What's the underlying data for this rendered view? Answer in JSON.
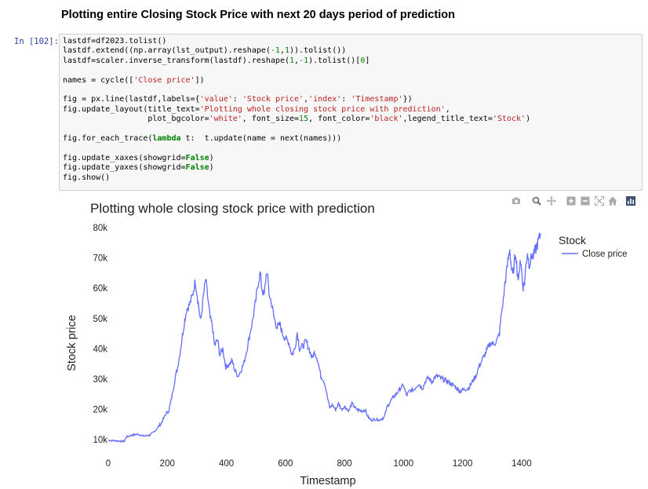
{
  "notebook": {
    "heading": "Plotting entire Closing Stock Price with next 20 days period of prediction",
    "prompt": "In [102]:",
    "code_lines": [
      "lastdf=df2023.tolist()",
      "lastdf.extend((np.array(lst_output).reshape(-1,1)).tolist())",
      "lastdf=scaler.inverse_transform(lastdf).reshape(1,-1).tolist()[0]",
      "",
      "names = cycle(['Close price'])",
      "",
      "fig = px.line(lastdf,labels={'value': 'Stock price','index': 'Timestamp'})",
      "fig.update_layout(title_text='Plotting whole closing stock price with prediction',",
      "                  plot_bgcolor='white', font_size=15, font_color='black',legend_title_text='Stock')",
      "",
      "fig.for_each_trace(lambda t:  t.update(name = next(names)))",
      "",
      "fig.update_xaxes(showgrid=False)",
      "fig.update_yaxes(showgrid=False)",
      "fig.show()"
    ]
  },
  "modebar": {
    "icons": [
      "camera-icon",
      "zoom-icon",
      "pan-icon",
      "zoom-in-icon",
      "zoom-out-icon",
      "autoscale-icon",
      "home-icon",
      "plotly-logo-icon"
    ]
  },
  "chart_data": {
    "type": "line",
    "title": "Plotting whole closing stock price with prediction",
    "xlabel": "Timestamp",
    "ylabel": "Stock price",
    "xlim": [
      0,
      1480
    ],
    "ylim": [
      9000,
      80000
    ],
    "x_ticks": [
      0,
      200,
      400,
      600,
      800,
      1000,
      1200,
      1400
    ],
    "y_ticks": [
      10000,
      20000,
      30000,
      40000,
      50000,
      60000,
      70000,
      80000
    ],
    "y_tick_labels": [
      "10k",
      "20k",
      "30k",
      "40k",
      "50k",
      "60k",
      "70k",
      "80k"
    ],
    "grid": false,
    "legend_title": "Stock",
    "legend_position": "top-right",
    "series": [
      {
        "name": "Close price",
        "color": "#636efa",
        "points": [
          [
            0,
            9800
          ],
          [
            30,
            9600
          ],
          [
            55,
            9400
          ],
          [
            60,
            10800
          ],
          [
            80,
            11500
          ],
          [
            100,
            11800
          ],
          [
            120,
            11200
          ],
          [
            140,
            11500
          ],
          [
            155,
            12500
          ],
          [
            165,
            13800
          ],
          [
            180,
            15500
          ],
          [
            195,
            18500
          ],
          [
            205,
            19500
          ],
          [
            215,
            24000
          ],
          [
            225,
            29500
          ],
          [
            235,
            34000
          ],
          [
            245,
            40000
          ],
          [
            255,
            47000
          ],
          [
            265,
            53000
          ],
          [
            275,
            54500
          ],
          [
            285,
            57500
          ],
          [
            295,
            62500
          ],
          [
            305,
            55000
          ],
          [
            313,
            49000
          ],
          [
            322,
            57000
          ],
          [
            330,
            63000
          ],
          [
            338,
            56000
          ],
          [
            345,
            50000
          ],
          [
            352,
            48000
          ],
          [
            360,
            41000
          ],
          [
            370,
            43000
          ],
          [
            378,
            38000
          ],
          [
            388,
            40000
          ],
          [
            398,
            34000
          ],
          [
            410,
            35000
          ],
          [
            420,
            36000
          ],
          [
            428,
            33000
          ],
          [
            440,
            31000
          ],
          [
            450,
            33000
          ],
          [
            460,
            35500
          ],
          [
            470,
            40000
          ],
          [
            480,
            45000
          ],
          [
            490,
            50000
          ],
          [
            500,
            56000
          ],
          [
            508,
            62000
          ],
          [
            515,
            65000
          ],
          [
            520,
            60000
          ],
          [
            528,
            57500
          ],
          [
            537,
            66000
          ],
          [
            545,
            58000
          ],
          [
            553,
            55000
          ],
          [
            562,
            50000
          ],
          [
            572,
            47000
          ],
          [
            582,
            48000
          ],
          [
            590,
            45000
          ],
          [
            600,
            43500
          ],
          [
            612,
            42000
          ],
          [
            622,
            38000
          ],
          [
            632,
            40000
          ],
          [
            640,
            45500
          ],
          [
            648,
            40000
          ],
          [
            660,
            41000
          ],
          [
            670,
            42500
          ],
          [
            680,
            40000
          ],
          [
            690,
            37000
          ],
          [
            700,
            39000
          ],
          [
            710,
            36000
          ],
          [
            720,
            31000
          ],
          [
            728,
            30000
          ],
          [
            735,
            28000
          ],
          [
            742,
            24000
          ],
          [
            750,
            20500
          ],
          [
            760,
            21500
          ],
          [
            770,
            19800
          ],
          [
            780,
            22000
          ],
          [
            790,
            20000
          ],
          [
            800,
            21000
          ],
          [
            815,
            19500
          ],
          [
            825,
            22000
          ],
          [
            840,
            20000
          ],
          [
            855,
            19500
          ],
          [
            870,
            19800
          ],
          [
            880,
            17500
          ],
          [
            890,
            16500
          ],
          [
            905,
            16800
          ],
          [
            920,
            16500
          ],
          [
            935,
            17500
          ],
          [
            945,
            21000
          ],
          [
            955,
            22500
          ],
          [
            965,
            24000
          ],
          [
            975,
            25000
          ],
          [
            990,
            27000
          ],
          [
            1000,
            28000
          ],
          [
            1010,
            24500
          ],
          [
            1020,
            26000
          ],
          [
            1035,
            26500
          ],
          [
            1050,
            28500
          ],
          [
            1065,
            27000
          ],
          [
            1075,
            29500
          ],
          [
            1085,
            30500
          ],
          [
            1095,
            29000
          ],
          [
            1105,
            30500
          ],
          [
            1115,
            31000
          ],
          [
            1130,
            30000
          ],
          [
            1145,
            29500
          ],
          [
            1160,
            28500
          ],
          [
            1175,
            27500
          ],
          [
            1190,
            26000
          ],
          [
            1205,
            26500
          ],
          [
            1220,
            27000
          ],
          [
            1232,
            29000
          ],
          [
            1245,
            31000
          ],
          [
            1255,
            34000
          ],
          [
            1265,
            36000
          ],
          [
            1275,
            38000
          ],
          [
            1285,
            40000
          ],
          [
            1295,
            42000
          ],
          [
            1305,
            41500
          ],
          [
            1315,
            42500
          ],
          [
            1325,
            45000
          ],
          [
            1332,
            52000
          ],
          [
            1338,
            56000
          ],
          [
            1344,
            62000
          ],
          [
            1350,
            66000
          ],
          [
            1355,
            70000
          ],
          [
            1360,
            73000
          ],
          [
            1365,
            67000
          ],
          [
            1370,
            64000
          ],
          [
            1375,
            68000
          ],
          [
            1380,
            72000
          ],
          [
            1385,
            66000
          ],
          [
            1390,
            62000
          ],
          [
            1395,
            70000
          ],
          [
            1400,
            66000
          ],
          [
            1405,
            60500
          ],
          [
            1410,
            62000
          ],
          [
            1415,
            68000
          ],
          [
            1420,
            72000
          ],
          [
            1425,
            68000
          ],
          [
            1430,
            69000
          ],
          [
            1435,
            71000
          ],
          [
            1440,
            70500
          ],
          [
            1445,
            72000
          ],
          [
            1450,
            73500
          ],
          [
            1455,
            75000
          ],
          [
            1460,
            76500
          ],
          [
            1465,
            78000
          ]
        ]
      }
    ]
  }
}
